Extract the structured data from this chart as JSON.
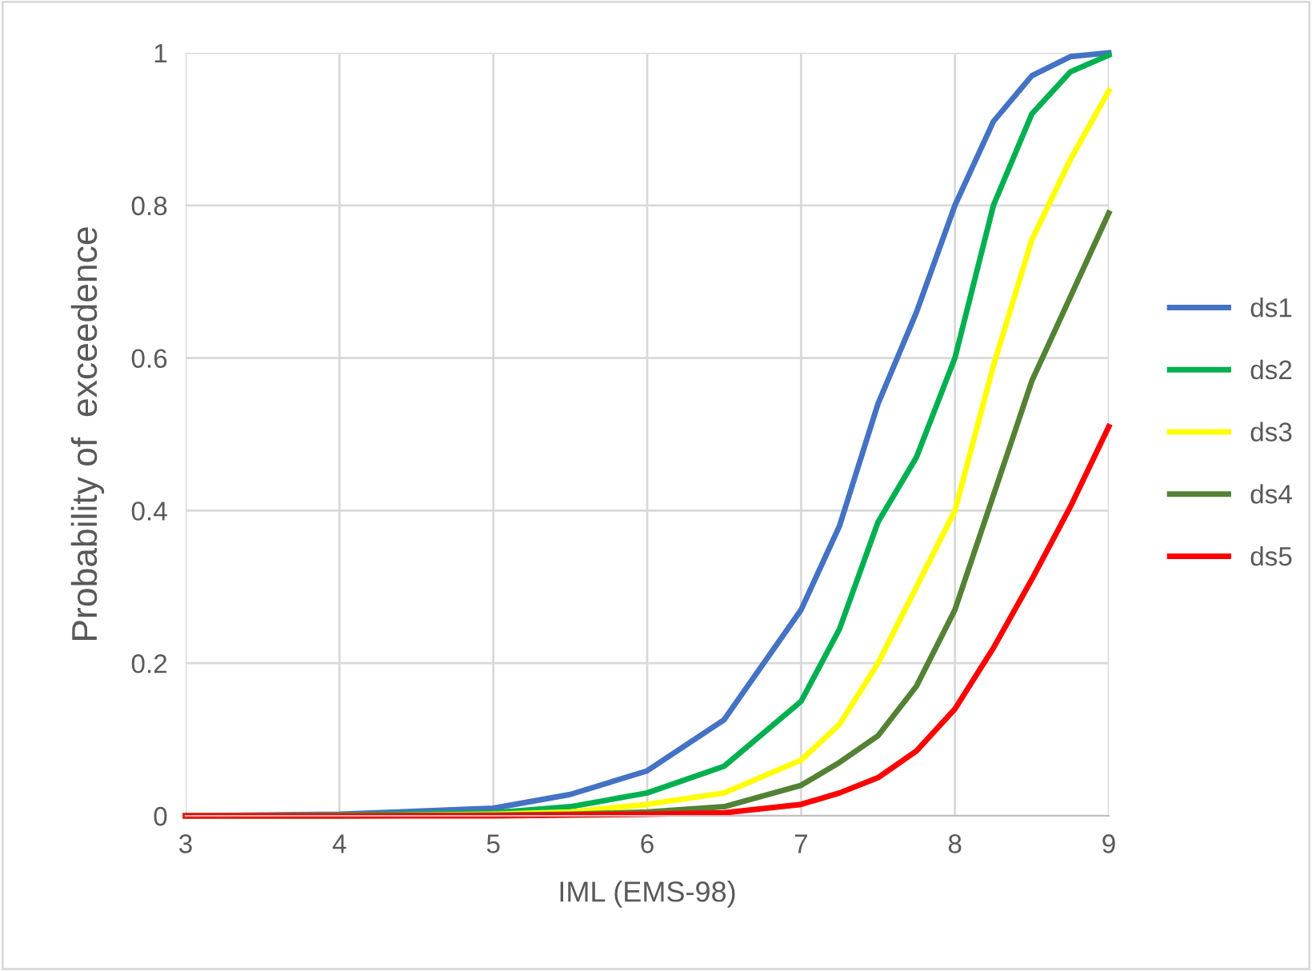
{
  "chart_data": {
    "type": "line",
    "xlabel": "IML (EMS-98)",
    "ylabel": "Probability of  exceedence",
    "xlim": [
      3,
      9
    ],
    "ylim": [
      0,
      1
    ],
    "xticks": [
      3,
      4,
      5,
      6,
      7,
      8,
      9
    ],
    "yticks": [
      0,
      {
        "value": 0.2,
        "label": "0.2"
      },
      {
        "value": 0.4,
        "label": "0.4"
      },
      {
        "value": 0.6,
        "label": "0.6"
      },
      {
        "value": 0.8,
        "label": "0.8"
      },
      1
    ],
    "grid": true,
    "legend": "right",
    "marker": "none",
    "line_style": "solid",
    "x": [
      3,
      4,
      5,
      5.5,
      6,
      6.5,
      7,
      7.25,
      7.5,
      7.75,
      8,
      8.25,
      8.5,
      8.75,
      9
    ],
    "series": [
      {
        "name": "ds1",
        "color": "#4472c4",
        "values": [
          0,
          0.002,
          0.01,
          0.028,
          0.059,
          0.126,
          0.27,
          0.38,
          0.54,
          0.66,
          0.8,
          0.91,
          0.97,
          0.995,
          1.0
        ]
      },
      {
        "name": "ds2",
        "color": "#00b050",
        "values": [
          0,
          0.001,
          0.004,
          0.012,
          0.03,
          0.065,
          0.15,
          0.245,
          0.385,
          0.47,
          0.6,
          0.8,
          0.92,
          0.975,
          0.997
        ]
      },
      {
        "name": "ds3",
        "color": "#ffff00",
        "values": [
          0,
          0,
          0.002,
          0.005,
          0.015,
          0.03,
          0.073,
          0.12,
          0.2,
          0.3,
          0.4,
          0.59,
          0.755,
          0.86,
          0.95
        ]
      },
      {
        "name": "ds4",
        "color": "#548235",
        "values": [
          0,
          0,
          0.001,
          0.002,
          0.005,
          0.012,
          0.04,
          0.07,
          0.105,
          0.17,
          0.27,
          0.42,
          0.57,
          0.68,
          0.79
        ]
      },
      {
        "name": "ds5",
        "color": "#ff0000",
        "values": [
          0,
          0,
          0,
          0.001,
          0.002,
          0.004,
          0.015,
          0.03,
          0.05,
          0.085,
          0.14,
          0.22,
          0.31,
          0.405,
          0.51
        ]
      }
    ]
  }
}
